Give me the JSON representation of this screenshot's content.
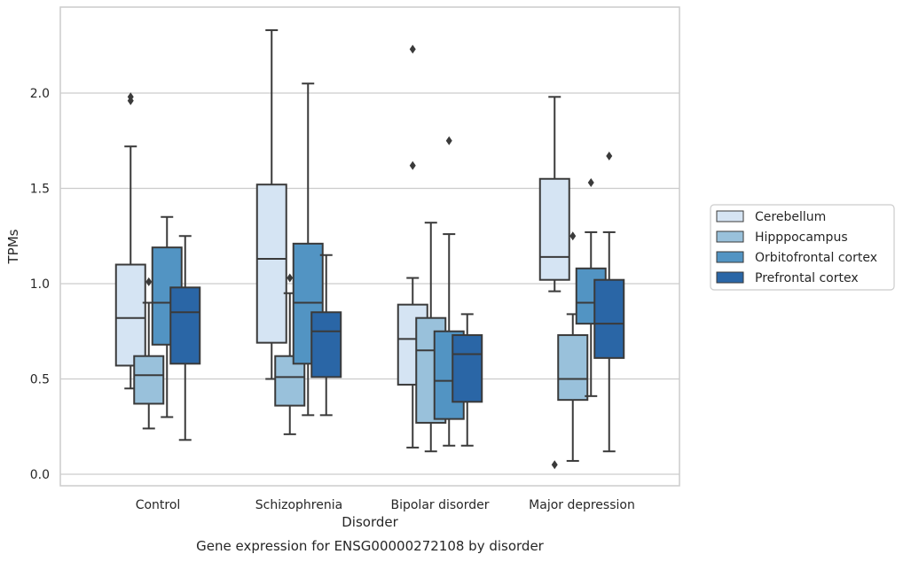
{
  "chart_data": {
    "type": "box",
    "caption": "Gene expression for ENSG00000272108 by disorder",
    "xlabel": "Disorder",
    "ylabel": "TPMs",
    "ylim": [
      -0.05,
      2.46
    ],
    "yticks": [
      0.0,
      0.5,
      1.0,
      1.5,
      2.0
    ],
    "ytick_labels": [
      "0.0",
      "0.5",
      "1.0",
      "1.5",
      "2.0"
    ],
    "grid": true,
    "legend_position": "right",
    "categories": [
      "Control",
      "Schizophrenia",
      "Bipolar disorder",
      "Major depression"
    ],
    "series": [
      {
        "name": "Cerebellum",
        "color": "#d5e4f3",
        "boxes": [
          {
            "whislo": 0.45,
            "q1": 0.57,
            "med": 0.82,
            "q3": 1.1,
            "whishi": 1.72,
            "fliers": [
              1.96,
              1.98
            ]
          },
          {
            "whislo": 0.5,
            "q1": 0.69,
            "med": 1.13,
            "q3": 1.52,
            "whishi": 2.33,
            "fliers": []
          },
          {
            "whislo": 0.14,
            "q1": 0.47,
            "med": 0.71,
            "q3": 0.89,
            "whishi": 1.03,
            "fliers": [
              1.62,
              2.23
            ]
          },
          {
            "whislo": 0.96,
            "q1": 1.02,
            "med": 1.14,
            "q3": 1.55,
            "whishi": 1.98,
            "fliers": [
              0.05
            ]
          }
        ]
      },
      {
        "name": "Hipppocampus",
        "color": "#99c1db",
        "boxes": [
          {
            "whislo": 0.24,
            "q1": 0.37,
            "med": 0.52,
            "q3": 0.62,
            "whishi": 0.9,
            "fliers": [
              1.01
            ]
          },
          {
            "whislo": 0.21,
            "q1": 0.36,
            "med": 0.51,
            "q3": 0.62,
            "whishi": 0.95,
            "fliers": [
              1.03
            ]
          },
          {
            "whislo": 0.12,
            "q1": 0.27,
            "med": 0.65,
            "q3": 0.82,
            "whishi": 1.32,
            "fliers": []
          },
          {
            "whislo": 0.07,
            "q1": 0.39,
            "med": 0.5,
            "q3": 0.73,
            "whishi": 0.84,
            "fliers": [
              1.25
            ]
          }
        ]
      },
      {
        "name": "Orbitofrontal cortex",
        "color": "#5294c3",
        "boxes": [
          {
            "whislo": 0.3,
            "q1": 0.68,
            "med": 0.9,
            "q3": 1.19,
            "whishi": 1.35,
            "fliers": []
          },
          {
            "whislo": 0.31,
            "q1": 0.58,
            "med": 0.9,
            "q3": 1.21,
            "whishi": 2.05,
            "fliers": []
          },
          {
            "whislo": 0.15,
            "q1": 0.29,
            "med": 0.49,
            "q3": 0.75,
            "whishi": 1.26,
            "fliers": [
              1.75
            ]
          },
          {
            "whislo": 0.41,
            "q1": 0.79,
            "med": 0.9,
            "q3": 1.08,
            "whishi": 1.27,
            "fliers": [
              1.53
            ]
          }
        ]
      },
      {
        "name": "Prefrontal cortex",
        "color": "#2a66a6",
        "boxes": [
          {
            "whislo": 0.18,
            "q1": 0.58,
            "med": 0.85,
            "q3": 0.98,
            "whishi": 1.25,
            "fliers": []
          },
          {
            "whislo": 0.31,
            "q1": 0.51,
            "med": 0.75,
            "q3": 0.85,
            "whishi": 1.15,
            "fliers": []
          },
          {
            "whislo": 0.15,
            "q1": 0.38,
            "med": 0.63,
            "q3": 0.73,
            "whishi": 0.84,
            "fliers": []
          },
          {
            "whislo": 0.12,
            "q1": 0.61,
            "med": 0.79,
            "q3": 1.02,
            "whishi": 1.27,
            "fliers": [
              1.67
            ]
          }
        ]
      }
    ]
  }
}
